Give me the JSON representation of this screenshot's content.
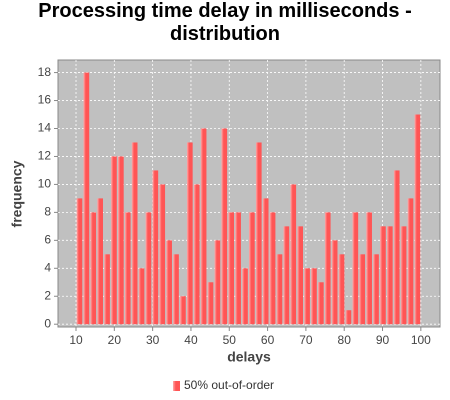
{
  "chart_data": {
    "type": "histogram",
    "title": "Processing time delay in milliseconds - distribution",
    "x_label": "delays",
    "y_label": "frequency",
    "bins": [
      10,
      11.8,
      13.6,
      15.4,
      17.2,
      19,
      20.8,
      22.6,
      24.4,
      26.2,
      28,
      29.8,
      31.6,
      33.4,
      35.2,
      37,
      38.8,
      40.6,
      42.4,
      44.2,
      46,
      47.8,
      49.6,
      51.4,
      53.2,
      55,
      56.8,
      58.6,
      60.4,
      62.2,
      64,
      65.8,
      67.6,
      69.4,
      71.2,
      73,
      74.8,
      76.6,
      78.4,
      80.2,
      82,
      83.8,
      85.6,
      87.4,
      89.2,
      91,
      92.8,
      94.6,
      96.4,
      98.2,
      100
    ],
    "series": [
      {
        "name": "50% out-of-order",
        "color": "#ff5555",
        "values": [
          9,
          18,
          8,
          9,
          5,
          12,
          12,
          8,
          13,
          4,
          8,
          11,
          10,
          6,
          5,
          2,
          13,
          10,
          14,
          3,
          6,
          14,
          8,
          8,
          4,
          8,
          13,
          9,
          8,
          5,
          7,
          10,
          7,
          4,
          4,
          3,
          8,
          6,
          5,
          1,
          8,
          5,
          8,
          5,
          7,
          7,
          11,
          7,
          9,
          15
        ]
      }
    ],
    "xlim": [
      5.3,
      105
    ],
    "ylim": [
      -0.2,
      18.9
    ],
    "xticks": [
      10,
      20,
      30,
      40,
      50,
      60,
      70,
      80,
      90,
      100
    ],
    "yticks": [
      0,
      2,
      4,
      6,
      8,
      10,
      12,
      14,
      16,
      18
    ],
    "grid": true,
    "legend": "bottom",
    "background": "#c0c0c0"
  }
}
